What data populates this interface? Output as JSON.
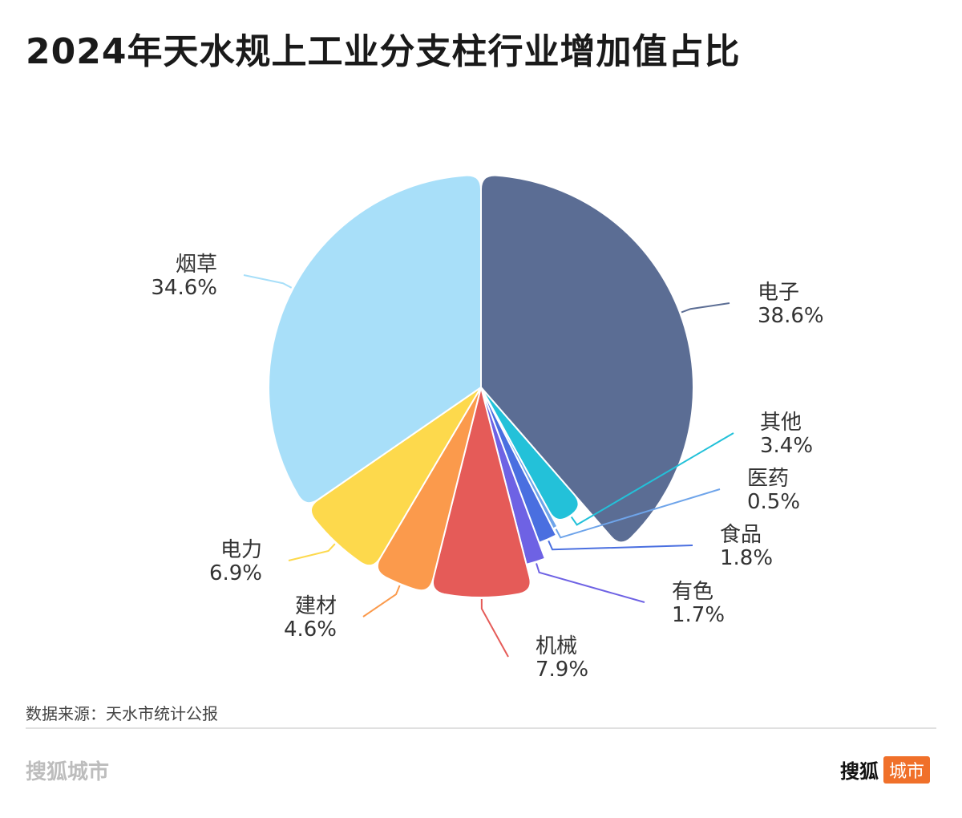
{
  "title": "2024年天水规上工业分支柱行业增加值占比",
  "source": "数据来源：天水市统计公报",
  "brand_left": "搜狐城市",
  "brand_right_main": "搜狐",
  "brand_right_tag": "城市",
  "chart_data": {
    "type": "pie",
    "title": "2024年天水规上工业分支柱行业增加值占比",
    "unit": "%",
    "slices": [
      {
        "label": "电子",
        "value": 38.6,
        "display": "38.6%",
        "color": "#5b6d94"
      },
      {
        "label": "其他",
        "value": 3.4,
        "display": "3.4%",
        "color": "#23c1d9"
      },
      {
        "label": "医药",
        "value": 0.5,
        "display": "0.5%",
        "color": "#6ea4ea"
      },
      {
        "label": "食品",
        "value": 1.8,
        "display": "1.8%",
        "color": "#4a6fe0"
      },
      {
        "label": "有色",
        "value": 1.7,
        "display": "1.7%",
        "color": "#6e62e4"
      },
      {
        "label": "机械",
        "value": 7.9,
        "display": "7.9%",
        "color": "#e55b58"
      },
      {
        "label": "建材",
        "value": 4.6,
        "display": "4.6%",
        "color": "#fb9a4c"
      },
      {
        "label": "电力",
        "value": 6.9,
        "display": "6.9%",
        "color": "#fdd94c"
      },
      {
        "label": "烟草",
        "value": 34.6,
        "display": "34.6%",
        "color": "#a8dff9"
      }
    ]
  }
}
